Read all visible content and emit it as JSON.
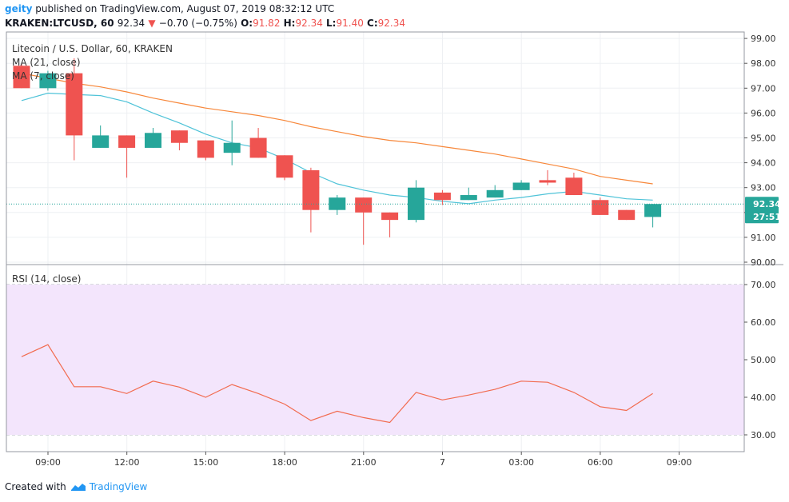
{
  "header": {
    "user": "geity",
    "published_text": "published on TradingView.com, August 07, 2019 08:32:12 UTC",
    "symbol_line": "KRAKEN:LTCUSD, 60",
    "last": "92.34",
    "change": "−0.70 (−0.75%)",
    "o_label": "O:",
    "o_value": "91.82",
    "h_label": "H:",
    "h_value": "92.34",
    "l_label": "L:",
    "l_value": "91.40",
    "c_label": "C:",
    "c_value": "92.34"
  },
  "price_pane": {
    "title": "Litecoin / U.S. Dollar, 60, KRAKEN",
    "ma21_label": "MA (21, close)",
    "ma7_label": "MA (7, close)",
    "last_price_tag": "92.34",
    "countdown_tag": "27:51"
  },
  "rsi_pane": {
    "label": "RSI (14, close)"
  },
  "footer": {
    "created_with": "Created with",
    "brand": "TradingView"
  },
  "colors": {
    "up": "#26a69a",
    "down": "#ef5350",
    "ma21": "#f7873a",
    "ma7": "#4fc3d8",
    "rsi_line": "#f26b4f",
    "rsi_band": "#f3e5fc",
    "tag_bg": "#26a69a"
  },
  "chart_data": [
    {
      "type": "candlestick",
      "title": "Litecoin / U.S. Dollar, 60, KRAKEN",
      "x_ticks": [
        "09:00",
        "12:00",
        "15:00",
        "18:00",
        "21:00",
        "7",
        "03:00",
        "06:00",
        "09:00"
      ],
      "x_tick_index": [
        1.3,
        4.3,
        7.3,
        10.3,
        13.3,
        16.3,
        19.3,
        22.3,
        25.3
      ],
      "ylim": [
        90.0,
        99.0
      ],
      "y_ticks": [
        "99.00",
        "98.00",
        "97.00",
        "96.00",
        "95.00",
        "94.00",
        "93.00",
        "92.00",
        "91.00",
        "90.00"
      ],
      "y_tick_values": [
        99,
        98,
        97,
        96,
        95,
        94,
        93,
        92,
        91,
        90
      ],
      "candles": [
        {
          "o": 97.9,
          "h": 98.0,
          "l": 97.0,
          "c": 97.0
        },
        {
          "o": 97.0,
          "h": 97.7,
          "l": 96.9,
          "c": 97.6
        },
        {
          "o": 97.6,
          "h": 98.2,
          "l": 94.1,
          "c": 95.1
        },
        {
          "o": 94.6,
          "h": 95.5,
          "l": 94.6,
          "c": 95.1
        },
        {
          "o": 95.1,
          "h": 95.1,
          "l": 93.4,
          "c": 94.6
        },
        {
          "o": 94.6,
          "h": 95.4,
          "l": 94.6,
          "c": 95.2
        },
        {
          "o": 95.3,
          "h": 95.3,
          "l": 94.5,
          "c": 94.8
        },
        {
          "o": 94.9,
          "h": 94.9,
          "l": 94.1,
          "c": 94.2
        },
        {
          "o": 94.4,
          "h": 95.7,
          "l": 93.9,
          "c": 94.8
        },
        {
          "o": 95.0,
          "h": 95.4,
          "l": 94.2,
          "c": 94.2
        },
        {
          "o": 94.3,
          "h": 94.3,
          "l": 93.3,
          "c": 93.4
        },
        {
          "o": 93.7,
          "h": 93.8,
          "l": 91.2,
          "c": 92.1
        },
        {
          "o": 92.1,
          "h": 92.7,
          "l": 91.9,
          "c": 92.6
        },
        {
          "o": 92.6,
          "h": 92.6,
          "l": 90.7,
          "c": 92.0
        },
        {
          "o": 92.0,
          "h": 92.0,
          "l": 91.0,
          "c": 91.7
        },
        {
          "o": 91.7,
          "h": 93.3,
          "l": 91.6,
          "c": 93.0
        },
        {
          "o": 92.8,
          "h": 92.9,
          "l": 92.3,
          "c": 92.5
        },
        {
          "o": 92.5,
          "h": 93.0,
          "l": 92.5,
          "c": 92.7
        },
        {
          "o": 92.6,
          "h": 93.1,
          "l": 92.6,
          "c": 92.9
        },
        {
          "o": 92.9,
          "h": 93.3,
          "l": 92.9,
          "c": 93.2
        },
        {
          "o": 93.3,
          "h": 93.7,
          "l": 93.1,
          "c": 93.2
        },
        {
          "o": 93.4,
          "h": 93.6,
          "l": 92.7,
          "c": 92.7
        },
        {
          "o": 92.5,
          "h": 92.6,
          "l": 91.9,
          "c": 91.9
        },
        {
          "o": 92.1,
          "h": 92.1,
          "l": 91.7,
          "c": 91.7
        },
        {
          "o": 91.82,
          "h": 92.34,
          "l": 91.4,
          "c": 92.34
        }
      ],
      "series": [
        {
          "name": "MA (21, close)",
          "values": [
            97.6,
            97.4,
            97.2,
            97.05,
            96.85,
            96.6,
            96.4,
            96.2,
            96.05,
            95.9,
            95.7,
            95.45,
            95.25,
            95.05,
            94.9,
            94.8,
            94.65,
            94.5,
            94.35,
            94.15,
            93.95,
            93.75,
            93.45,
            93.3,
            93.15
          ]
        },
        {
          "name": "MA (7, close)",
          "values": [
            96.5,
            96.8,
            96.75,
            96.7,
            96.45,
            96.0,
            95.6,
            95.15,
            94.8,
            94.6,
            94.15,
            93.6,
            93.15,
            92.9,
            92.7,
            92.6,
            92.45,
            92.35,
            92.5,
            92.6,
            92.75,
            92.85,
            92.7,
            92.55,
            92.5
          ]
        }
      ],
      "last_price": 92.34
    },
    {
      "type": "line",
      "title": "RSI (14, close)",
      "ylim": [
        26,
        73
      ],
      "y_ticks": [
        "70.00",
        "60.00",
        "50.00",
        "40.00",
        "30.00"
      ],
      "y_tick_values": [
        70,
        60,
        50,
        40,
        30
      ],
      "band": [
        30,
        70
      ],
      "series": [
        {
          "name": "RSI (14, close)",
          "values": [
            50.8,
            54.0,
            42.8,
            42.8,
            41.0,
            44.3,
            42.7,
            40.0,
            43.4,
            41.0,
            38.2,
            33.8,
            36.3,
            34.6,
            33.3,
            41.3,
            39.3,
            40.6,
            42.1,
            44.3,
            44.0,
            41.3,
            37.5,
            36.5,
            41.0
          ]
        }
      ]
    }
  ]
}
